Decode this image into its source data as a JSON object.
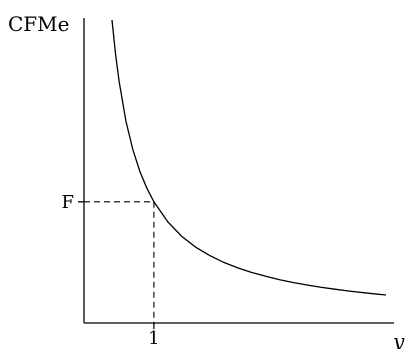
{
  "chart_data": {
    "type": "line",
    "ylabel": "CFMe",
    "xlabel": "y",
    "x_ticks": [
      {
        "value": 1,
        "label": "1"
      }
    ],
    "y_ticks": [
      {
        "value": 1,
        "label": "F"
      }
    ],
    "series": [
      {
        "x": [
          0.4,
          0.45,
          0.5,
          0.6,
          0.7,
          0.8,
          0.9,
          1.0,
          1.2,
          1.4,
          1.6,
          1.8,
          2.0,
          2.2,
          2.4,
          2.6,
          2.8,
          3.0,
          3.2,
          3.4,
          3.6,
          3.8,
          4.0,
          4.2,
          4.32
        ],
        "y": [
          2.5,
          2.222,
          2.0,
          1.667,
          1.429,
          1.25,
          1.111,
          1.0,
          0.833,
          0.714,
          0.625,
          0.556,
          0.5,
          0.455,
          0.417,
          0.385,
          0.357,
          0.333,
          0.313,
          0.294,
          0.278,
          0.263,
          0.25,
          0.238,
          0.231
        ]
      }
    ],
    "guides": [
      {
        "x": 1,
        "y": 1,
        "style": "dashed"
      }
    ],
    "xlim": [
      0,
      4.32
    ],
    "ylim": [
      0,
      2.5
    ],
    "grid": false,
    "legend": "none"
  }
}
